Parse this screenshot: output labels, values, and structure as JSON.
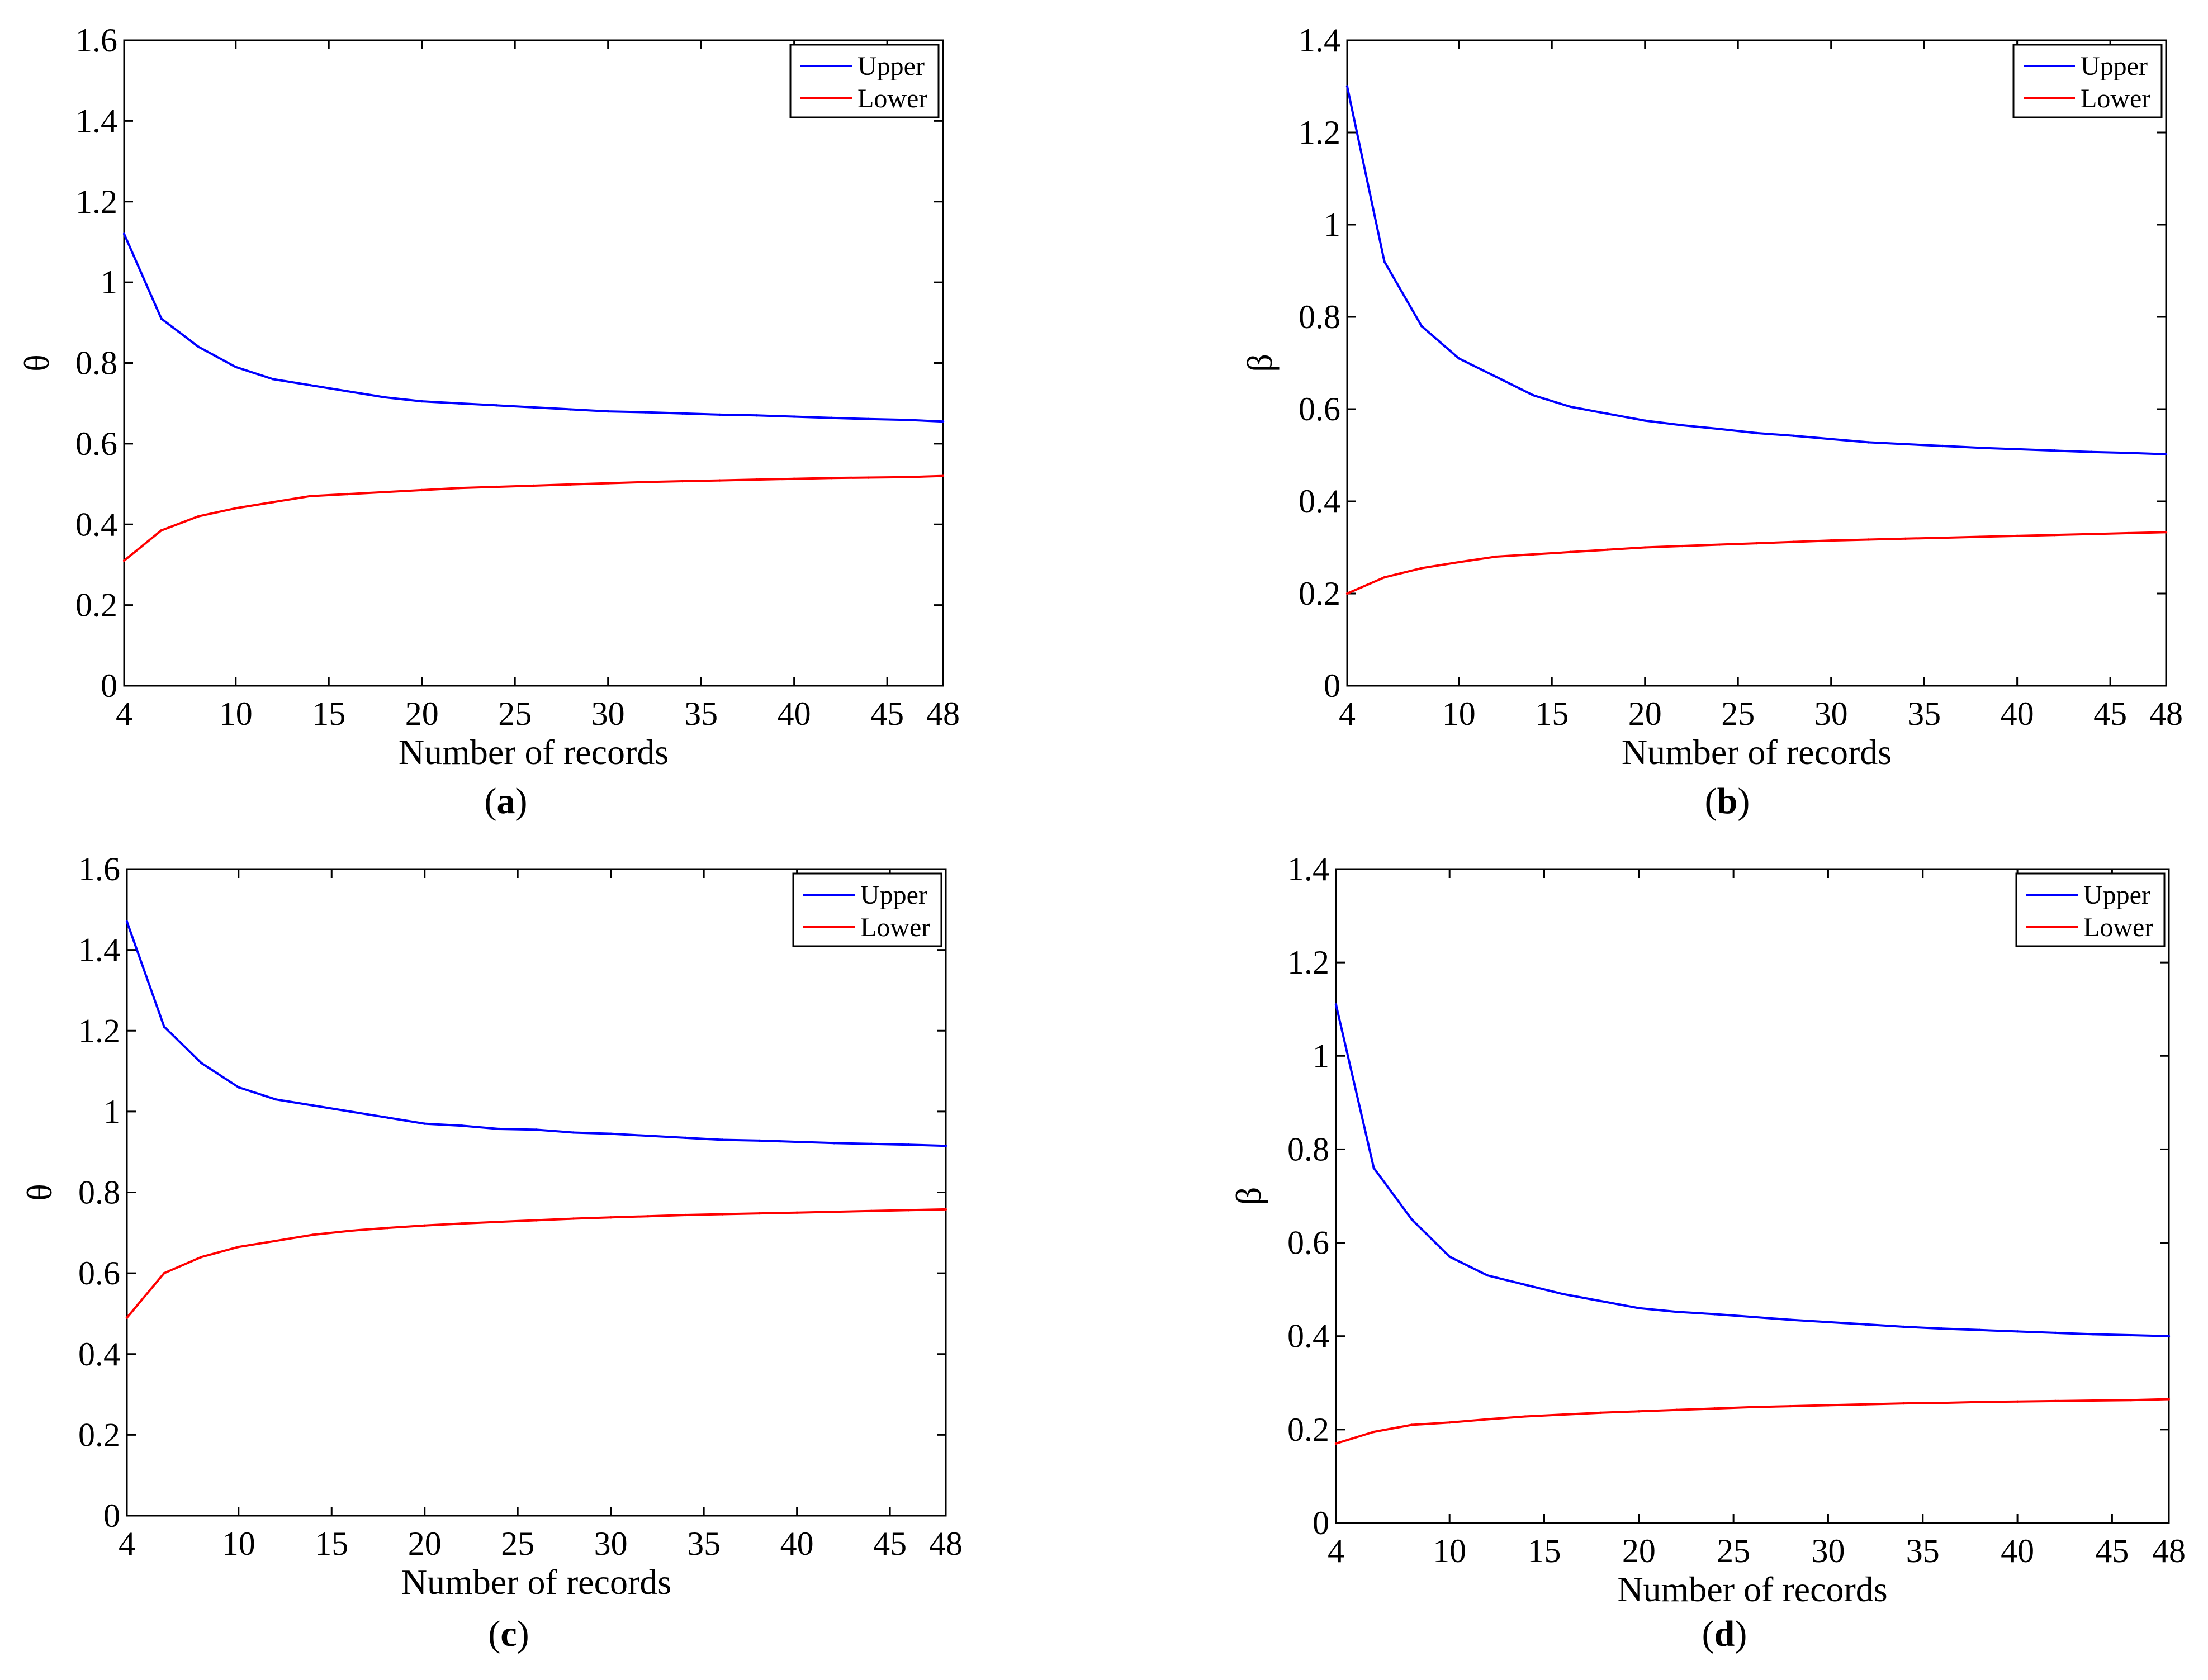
{
  "chart_data": [
    {
      "id": "a",
      "type": "line",
      "caption_letter": "a",
      "caption_open": "(",
      "caption_close": ")",
      "xlabel": "Number of records",
      "ylabel": "θ",
      "xlim": [
        4,
        48
      ],
      "ylim": [
        0,
        1.6
      ],
      "xticks": [
        4,
        10,
        15,
        20,
        25,
        30,
        35,
        40,
        45,
        48
      ],
      "yticks": [
        0,
        0.2,
        0.4,
        0.6,
        0.8,
        1,
        1.2,
        1.4,
        1.6
      ],
      "grid": false,
      "legend_position": "top-right",
      "x": [
        4,
        6,
        8,
        10,
        12,
        14,
        16,
        18,
        20,
        22,
        24,
        26,
        28,
        30,
        32,
        34,
        36,
        38,
        40,
        42,
        44,
        46,
        48
      ],
      "series": [
        {
          "name": "Upper",
          "color": "#0000ff",
          "values": [
            1.12,
            0.91,
            0.84,
            0.79,
            0.76,
            0.745,
            0.73,
            0.715,
            0.705,
            0.7,
            0.695,
            0.69,
            0.685,
            0.68,
            0.678,
            0.675,
            0.672,
            0.67,
            0.667,
            0.664,
            0.661,
            0.659,
            0.655
          ]
        },
        {
          "name": "Lower",
          "color": "#ff0000",
          "values": [
            0.31,
            0.385,
            0.42,
            0.44,
            0.455,
            0.47,
            0.475,
            0.48,
            0.485,
            0.49,
            0.493,
            0.496,
            0.499,
            0.502,
            0.505,
            0.507,
            0.509,
            0.511,
            0.513,
            0.515,
            0.516,
            0.517,
            0.52
          ]
        }
      ]
    },
    {
      "id": "b",
      "type": "line",
      "caption_letter": "b",
      "caption_open": "(",
      "caption_close": ")",
      "xlabel": "Number of records",
      "ylabel": "β",
      "xlim": [
        4,
        48
      ],
      "ylim": [
        0,
        1.4
      ],
      "xticks": [
        4,
        10,
        15,
        20,
        25,
        30,
        35,
        40,
        45,
        48
      ],
      "yticks": [
        0,
        0.2,
        0.4,
        0.6,
        0.8,
        1,
        1.2,
        1.4
      ],
      "grid": false,
      "legend_position": "top-right",
      "x": [
        4,
        6,
        8,
        10,
        12,
        14,
        16,
        18,
        20,
        22,
        24,
        26,
        28,
        30,
        32,
        34,
        36,
        38,
        40,
        42,
        44,
        46,
        48
      ],
      "series": [
        {
          "name": "Upper",
          "color": "#0000ff",
          "values": [
            1.3,
            0.92,
            0.78,
            0.71,
            0.67,
            0.63,
            0.605,
            0.59,
            0.575,
            0.565,
            0.557,
            0.548,
            0.542,
            0.535,
            0.528,
            0.524,
            0.52,
            0.516,
            0.513,
            0.51,
            0.507,
            0.505,
            0.502
          ]
        },
        {
          "name": "Lower",
          "color": "#ff0000",
          "values": [
            0.2,
            0.235,
            0.255,
            0.268,
            0.28,
            0.285,
            0.29,
            0.295,
            0.3,
            0.303,
            0.306,
            0.309,
            0.312,
            0.315,
            0.317,
            0.319,
            0.321,
            0.323,
            0.325,
            0.327,
            0.329,
            0.331,
            0.333
          ]
        }
      ]
    },
    {
      "id": "c",
      "type": "line",
      "caption_letter": "c",
      "caption_open": "(",
      "caption_close": ")",
      "xlabel": "Number of records",
      "ylabel": "θ",
      "xlim": [
        4,
        48
      ],
      "ylim": [
        0,
        1.6
      ],
      "xticks": [
        4,
        10,
        15,
        20,
        25,
        30,
        35,
        40,
        45,
        48
      ],
      "yticks": [
        0,
        0.2,
        0.4,
        0.6,
        0.8,
        1,
        1.2,
        1.4,
        1.6
      ],
      "grid": false,
      "legend_position": "top-right",
      "x": [
        4,
        6,
        8,
        10,
        12,
        14,
        16,
        18,
        20,
        22,
        24,
        26,
        28,
        30,
        32,
        34,
        36,
        38,
        40,
        42,
        44,
        46,
        48
      ],
      "series": [
        {
          "name": "Upper",
          "color": "#0000ff",
          "values": [
            1.47,
            1.21,
            1.12,
            1.06,
            1.03,
            1.015,
            1.0,
            0.985,
            0.97,
            0.965,
            0.957,
            0.955,
            0.948,
            0.945,
            0.94,
            0.935,
            0.93,
            0.928,
            0.925,
            0.922,
            0.92,
            0.918,
            0.915
          ]
        },
        {
          "name": "Lower",
          "color": "#ff0000",
          "values": [
            0.49,
            0.6,
            0.64,
            0.665,
            0.68,
            0.695,
            0.705,
            0.712,
            0.718,
            0.723,
            0.727,
            0.731,
            0.735,
            0.738,
            0.741,
            0.744,
            0.746,
            0.748,
            0.75,
            0.752,
            0.754,
            0.756,
            0.758
          ]
        }
      ]
    },
    {
      "id": "d",
      "type": "line",
      "caption_letter": "d",
      "caption_open": "(",
      "caption_close": ")",
      "xlabel": "Number of records",
      "ylabel": "β",
      "xlim": [
        4,
        48
      ],
      "ylim": [
        0,
        1.4
      ],
      "xticks": [
        4,
        10,
        15,
        20,
        25,
        30,
        35,
        40,
        45,
        48
      ],
      "yticks": [
        0,
        0.2,
        0.4,
        0.6,
        0.8,
        1,
        1.2,
        1.4
      ],
      "grid": false,
      "legend_position": "top-right",
      "x": [
        4,
        6,
        8,
        10,
        12,
        14,
        16,
        18,
        20,
        22,
        24,
        26,
        28,
        30,
        32,
        34,
        36,
        38,
        40,
        42,
        44,
        46,
        48
      ],
      "series": [
        {
          "name": "Upper",
          "color": "#0000ff",
          "values": [
            1.11,
            0.76,
            0.65,
            0.57,
            0.53,
            0.51,
            0.49,
            0.475,
            0.46,
            0.452,
            0.447,
            0.441,
            0.435,
            0.43,
            0.425,
            0.42,
            0.416,
            0.413,
            0.41,
            0.407,
            0.404,
            0.402,
            0.4
          ]
        },
        {
          "name": "Lower",
          "color": "#ff0000",
          "values": [
            0.17,
            0.195,
            0.21,
            0.215,
            0.222,
            0.228,
            0.232,
            0.236,
            0.239,
            0.242,
            0.245,
            0.248,
            0.25,
            0.252,
            0.254,
            0.256,
            0.257,
            0.259,
            0.26,
            0.261,
            0.262,
            0.263,
            0.265
          ]
        }
      ]
    }
  ]
}
